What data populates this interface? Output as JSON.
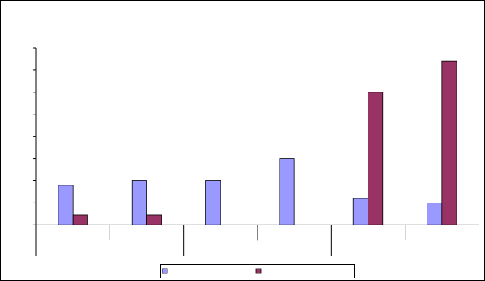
{
  "chart_data": {
    "type": "bar",
    "categories": [
      null,
      null,
      null,
      null,
      null,
      null
    ],
    "series": [
      {
        "color": "#9999ff",
        "values": [
          1.8,
          2.0,
          2.0,
          3.0,
          1.2,
          1.0
        ]
      },
      {
        "color": "#993366",
        "values": [
          0.45,
          0.45,
          0,
          0,
          6.0,
          7.4
        ]
      }
    ],
    "ylim": [
      -1.4,
      8
    ],
    "yticks": [
      0,
      1,
      2,
      3,
      4,
      5,
      6,
      7,
      8
    ],
    "grid": false
  }
}
